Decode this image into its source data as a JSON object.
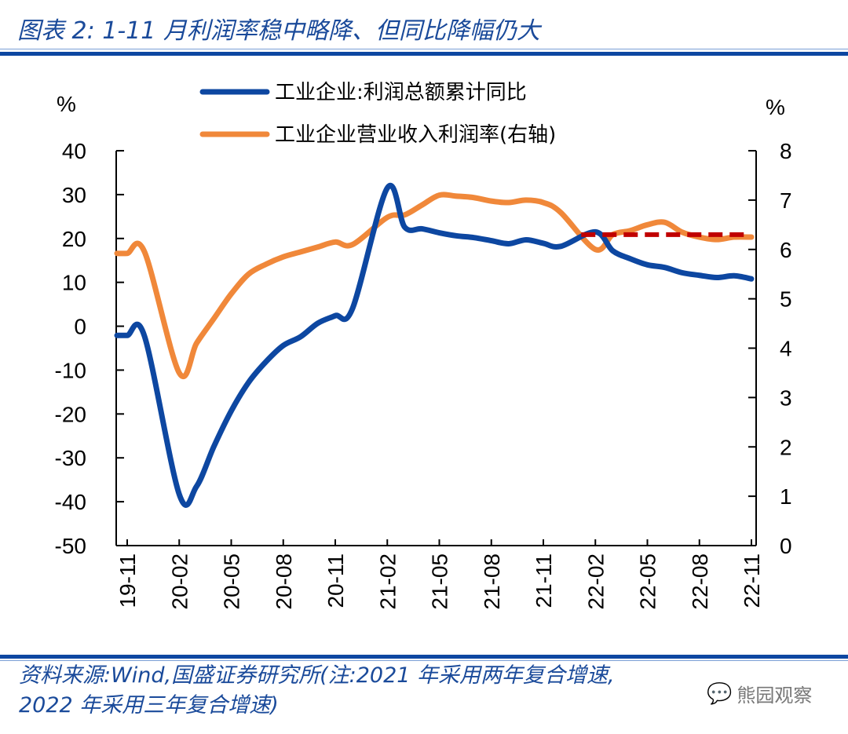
{
  "title": "图表 2:  1-11 月利润率稳中略降、但同比降幅仍大",
  "source_line1": "资料来源:Wind,国盛证券研究所(注:2021 年采用两年复合增速,",
  "source_line2": "2022 年采用三年复合增速)",
  "watermark": "熊园观察",
  "colors": {
    "blue": "#0d47a1",
    "orange": "#f0883a",
    "red_dashed": "#c00000",
    "rule": "#0d47a1"
  },
  "chart_data": {
    "type": "line",
    "left_unit": "%",
    "right_unit": "%",
    "left_ylim": [
      -50,
      40
    ],
    "right_ylim": [
      0,
      8
    ],
    "left_ticks": [
      "40",
      "30",
      "20",
      "10",
      "0",
      "-10",
      "-20",
      "-30",
      "-40",
      "-50"
    ],
    "right_ticks": [
      "8",
      "7",
      "6",
      "5",
      "4",
      "3",
      "2",
      "1",
      "0"
    ],
    "x_tick_labels": [
      "19-11",
      "20-02",
      "20-05",
      "20-08",
      "20-11",
      "21-02",
      "21-05",
      "21-08",
      "21-11",
      "22-02",
      "22-05",
      "22-08",
      "22-11"
    ],
    "months": [
      "19-11",
      "19-12",
      "20-01",
      "20-02",
      "20-03",
      "20-04",
      "20-05",
      "20-06",
      "20-07",
      "20-08",
      "20-09",
      "20-10",
      "20-11",
      "20-12",
      "21-01",
      "21-02",
      "21-03",
      "21-04",
      "21-05",
      "21-06",
      "21-07",
      "21-08",
      "21-09",
      "21-10",
      "21-11",
      "21-12",
      "22-01",
      "22-02",
      "22-03",
      "22-04",
      "22-05",
      "22-06",
      "22-07",
      "22-08",
      "22-09",
      "22-10",
      "22-11"
    ],
    "legend_placement": "top-center",
    "series": [
      {
        "name": "工业企业:利润总额累计同比",
        "axis": "left",
        "color": "#0d47a1",
        "values": [
          -2.1,
          -2.3,
          null,
          -38.3,
          -36.5,
          -27.4,
          -19.3,
          -12.8,
          -8.1,
          -4.4,
          -2.4,
          0.7,
          2.4,
          4.1,
          null,
          31.5,
          22.6,
          22.2,
          21.3,
          20.6,
          20.2,
          19.5,
          18.8,
          19.7,
          18.9,
          18.2,
          null,
          21.5,
          17.2,
          15.4,
          14.0,
          13.4,
          12.2,
          11.6,
          11.1,
          11.5,
          10.8
        ]
      },
      {
        "name": "工业企业营业收入利润率(右轴)",
        "axis": "right",
        "color": "#f0883a",
        "values": [
          5.92,
          5.95,
          null,
          3.5,
          4.1,
          4.6,
          5.1,
          5.5,
          5.7,
          5.85,
          5.95,
          6.05,
          6.15,
          6.1,
          null,
          6.65,
          6.7,
          6.9,
          7.1,
          7.08,
          7.05,
          6.98,
          6.95,
          7.0,
          6.95,
          6.75,
          null,
          6.0,
          6.3,
          6.38,
          6.5,
          6.55,
          6.35,
          6.25,
          6.2,
          6.25,
          6.25
        ]
      }
    ],
    "reference_line": {
      "axis": "right",
      "value": 6.3,
      "from": "22-02",
      "to": "22-11",
      "style": "dashed"
    }
  }
}
